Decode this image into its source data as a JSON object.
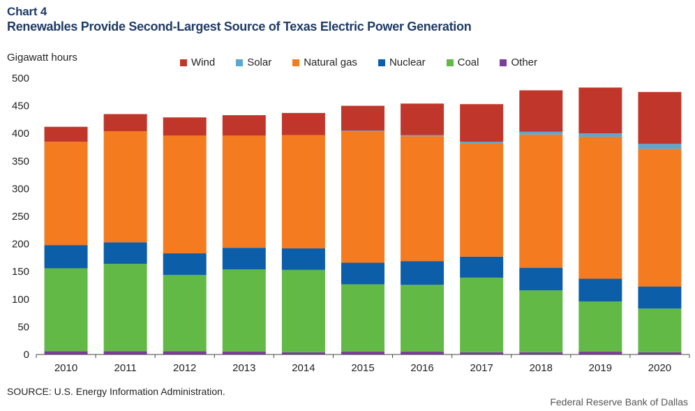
{
  "header": {
    "chart_label": "Chart 4",
    "title": "Renewables Provide Second-Largest Source of Texas Electric Power Generation"
  },
  "footer": {
    "source": "SOURCE: U.S. Energy Information Administration.",
    "credit": "Federal Reserve Bank of Dallas"
  },
  "chart_data": {
    "type": "bar",
    "stacked": true,
    "title": "Renewables Provide Second-Largest Source of Texas Electric Power Generation",
    "xlabel": "",
    "ylabel": "Gigawatt hours",
    "ylim": [
      0,
      500
    ],
    "yticks": [
      0,
      50,
      100,
      150,
      200,
      250,
      300,
      350,
      400,
      450,
      500
    ],
    "legend_position": "top",
    "grid": false,
    "categories": [
      "2010",
      "2011",
      "2012",
      "2013",
      "2014",
      "2015",
      "2016",
      "2017",
      "2018",
      "2019",
      "2020"
    ],
    "series": [
      {
        "name": "Other",
        "color": "#7b3f98",
        "values": [
          6,
          6,
          6,
          5,
          4,
          5,
          5,
          4,
          4,
          5,
          4
        ]
      },
      {
        "name": "Coal",
        "color": "#62b946",
        "values": [
          150,
          158,
          138,
          149,
          149,
          122,
          121,
          135,
          112,
          91,
          79
        ]
      },
      {
        "name": "Nuclear",
        "color": "#0c5ea8",
        "values": [
          42,
          39,
          39,
          39,
          39,
          39,
          43,
          38,
          41,
          41,
          40
        ]
      },
      {
        "name": "Natural gas",
        "color": "#f47b20",
        "values": [
          187,
          201,
          213,
          203,
          205,
          238,
          226,
          205,
          241,
          257,
          249
        ]
      },
      {
        "name": "Solar",
        "color": "#5ba8cf",
        "values": [
          0,
          0,
          0,
          0,
          0,
          1,
          2,
          3,
          5,
          6,
          9
        ]
      },
      {
        "name": "Wind",
        "color": "#c1362b",
        "values": [
          27,
          31,
          33,
          37,
          40,
          45,
          57,
          68,
          75,
          83,
          94
        ]
      }
    ]
  },
  "legend": [
    {
      "name": "Wind",
      "color": "#c1362b"
    },
    {
      "name": "Solar",
      "color": "#5ba8cf"
    },
    {
      "name": "Natural gas",
      "color": "#f47b20"
    },
    {
      "name": "Nuclear",
      "color": "#0c5ea8"
    },
    {
      "name": "Coal",
      "color": "#62b946"
    },
    {
      "name": "Other",
      "color": "#7b3f98"
    }
  ]
}
